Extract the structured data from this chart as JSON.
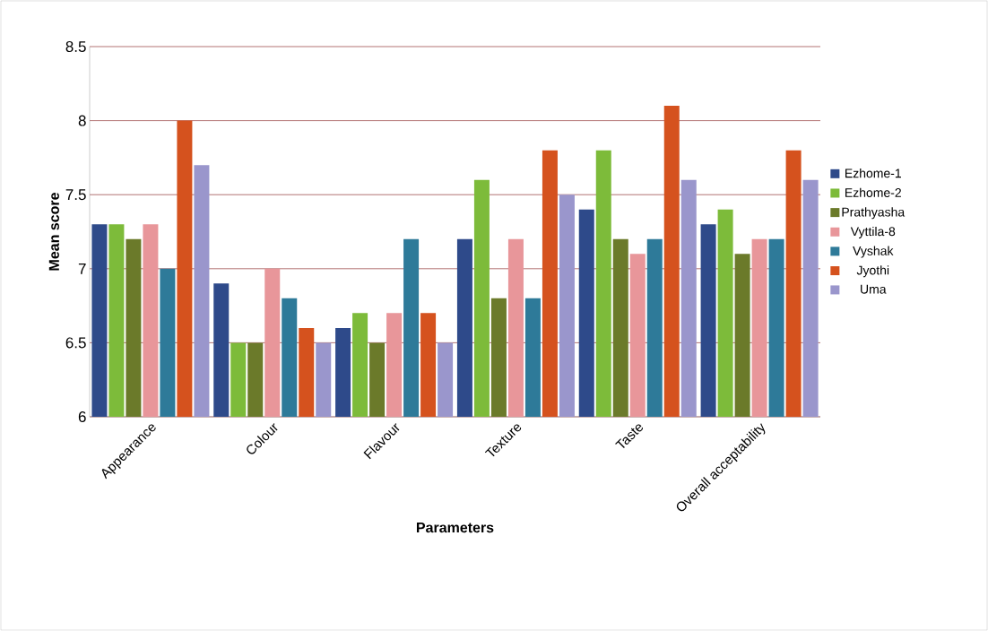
{
  "chart_data": {
    "type": "bar",
    "xlabel": "Parameters",
    "ylabel": "Mean score",
    "categories": [
      "Appearance",
      "Colour",
      "Flavour",
      "Texture",
      "Taste",
      "Overall acceptability"
    ],
    "series": [
      {
        "name": "Ezhome-1",
        "color": "#2e4a8a",
        "values": [
          7.3,
          6.9,
          6.6,
          7.2,
          7.4,
          7.3
        ]
      },
      {
        "name": "Ezhome-2",
        "color": "#7dbb3a",
        "values": [
          7.3,
          6.5,
          6.7,
          7.6,
          7.8,
          7.4
        ]
      },
      {
        "name": "Prathyasha",
        "color": "#6b7a2a",
        "values": [
          7.2,
          6.5,
          6.5,
          6.8,
          7.2,
          7.1
        ]
      },
      {
        "name": "Vyttila-8",
        "color": "#e8969a",
        "values": [
          7.3,
          7.0,
          6.7,
          7.2,
          7.1,
          7.2
        ]
      },
      {
        "name": "Vyshak",
        "color": "#2e7a99",
        "values": [
          7.0,
          6.8,
          7.2,
          6.8,
          7.2,
          7.2
        ]
      },
      {
        "name": "Jyothi",
        "color": "#d5521e",
        "values": [
          8.0,
          6.6,
          6.7,
          7.8,
          8.1,
          7.8
        ]
      },
      {
        "name": "Uma",
        "color": "#9a96cc",
        "values": [
          7.7,
          6.5,
          6.5,
          7.5,
          7.6,
          7.6
        ]
      }
    ],
    "ylim": [
      6,
      8.5
    ],
    "yticks": [
      6,
      6.5,
      7,
      7.5,
      8,
      8.5
    ],
    "grid": "y",
    "legend": "right"
  }
}
